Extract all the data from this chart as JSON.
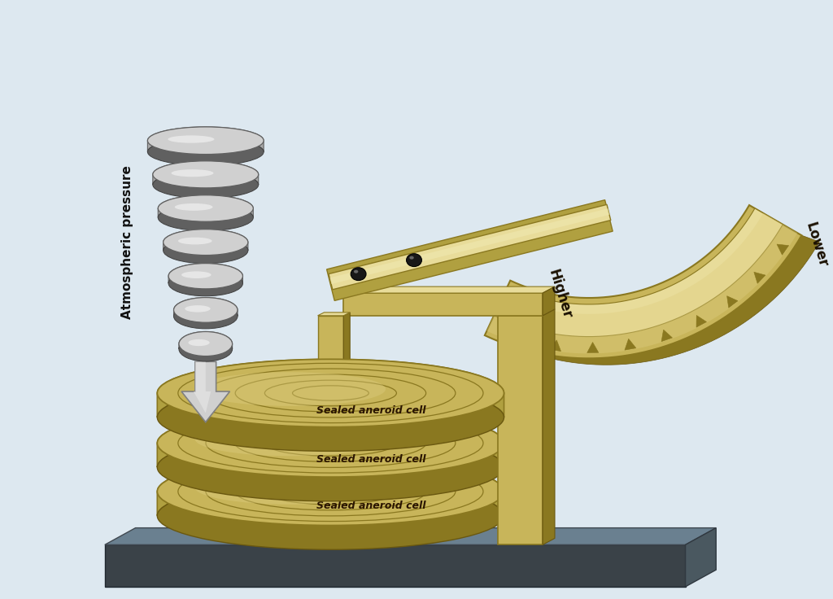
{
  "background_color": "#dde8f0",
  "gold_main": "#c8b55a",
  "gold_light": "#dece80",
  "gold_lighter": "#e8dc9a",
  "gold_dark": "#8a7820",
  "gold_shadow": "#6a5810",
  "gold_side": "#b0a040",
  "silver_top": "#d0d0d0",
  "silver_mid": "#a8a8a8",
  "silver_dark": "#606060",
  "silver_highlight": "#f0f0f0",
  "base_front": "#3a4248",
  "base_top": "#6a8090",
  "base_side": "#4a5860",
  "label_atm": "Atmospheric pressure",
  "label_cell": "Sealed aneroid cell",
  "label_higher": "Higher",
  "label_lower": "Lower",
  "figsize": [
    10.24,
    7.36
  ],
  "dpi": 100,
  "n_wafers": 7,
  "n_ticks": 9
}
